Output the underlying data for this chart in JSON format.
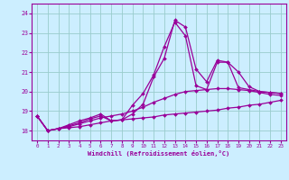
{
  "title": "",
  "xlabel": "Windchill (Refroidissement éolien,°C)",
  "ylabel": "",
  "bg_color": "#cceeff",
  "line_color": "#990099",
  "grid_color": "#99cccc",
  "xlim": [
    -0.5,
    23.5
  ],
  "ylim": [
    17.5,
    24.5
  ],
  "yticks": [
    18,
    19,
    20,
    21,
    22,
    23,
    24
  ],
  "xticks": [
    0,
    1,
    2,
    3,
    4,
    5,
    6,
    7,
    8,
    9,
    10,
    11,
    12,
    13,
    14,
    15,
    16,
    17,
    18,
    19,
    20,
    21,
    22,
    23
  ],
  "series": [
    {
      "x": [
        0,
        1,
        2,
        3,
        4,
        5,
        6,
        7,
        8,
        9,
        10,
        11,
        12,
        13,
        14,
        15,
        16,
        17,
        18,
        19,
        20,
        21,
        22,
        23
      ],
      "y": [
        18.75,
        18.0,
        18.1,
        18.3,
        18.5,
        18.65,
        18.85,
        18.5,
        18.55,
        19.3,
        19.9,
        20.85,
        22.3,
        23.55,
        22.85,
        20.3,
        20.1,
        21.5,
        21.5,
        20.2,
        20.1,
        20.0,
        19.95,
        19.9
      ]
    },
    {
      "x": [
        0,
        1,
        2,
        3,
        4,
        5,
        6,
        7,
        8,
        9,
        10,
        11,
        12,
        13,
        14,
        15,
        16,
        17,
        18,
        19,
        20,
        21,
        22,
        23
      ],
      "y": [
        18.75,
        18.0,
        18.1,
        18.25,
        18.4,
        18.6,
        18.75,
        18.5,
        18.55,
        18.85,
        19.35,
        20.75,
        21.7,
        23.65,
        23.3,
        21.15,
        20.5,
        21.6,
        21.5,
        21.0,
        20.25,
        20.0,
        19.95,
        19.9
      ]
    },
    {
      "x": [
        0,
        1,
        2,
        3,
        4,
        5,
        6,
        7,
        8,
        9,
        10,
        11,
        12,
        13,
        14,
        15,
        16,
        17,
        18,
        19,
        20,
        21,
        22,
        23
      ],
      "y": [
        18.75,
        18.0,
        18.1,
        18.2,
        18.35,
        18.5,
        18.65,
        18.75,
        18.85,
        19.0,
        19.2,
        19.45,
        19.65,
        19.85,
        20.0,
        20.05,
        20.1,
        20.15,
        20.15,
        20.1,
        20.05,
        19.95,
        19.85,
        19.8
      ]
    },
    {
      "x": [
        0,
        1,
        2,
        3,
        4,
        5,
        6,
        7,
        8,
        9,
        10,
        11,
        12,
        13,
        14,
        15,
        16,
        17,
        18,
        19,
        20,
        21,
        22,
        23
      ],
      "y": [
        18.75,
        18.0,
        18.1,
        18.15,
        18.2,
        18.3,
        18.4,
        18.5,
        18.55,
        18.6,
        18.65,
        18.7,
        18.8,
        18.85,
        18.9,
        18.95,
        19.0,
        19.05,
        19.15,
        19.2,
        19.3,
        19.35,
        19.45,
        19.55
      ]
    }
  ]
}
